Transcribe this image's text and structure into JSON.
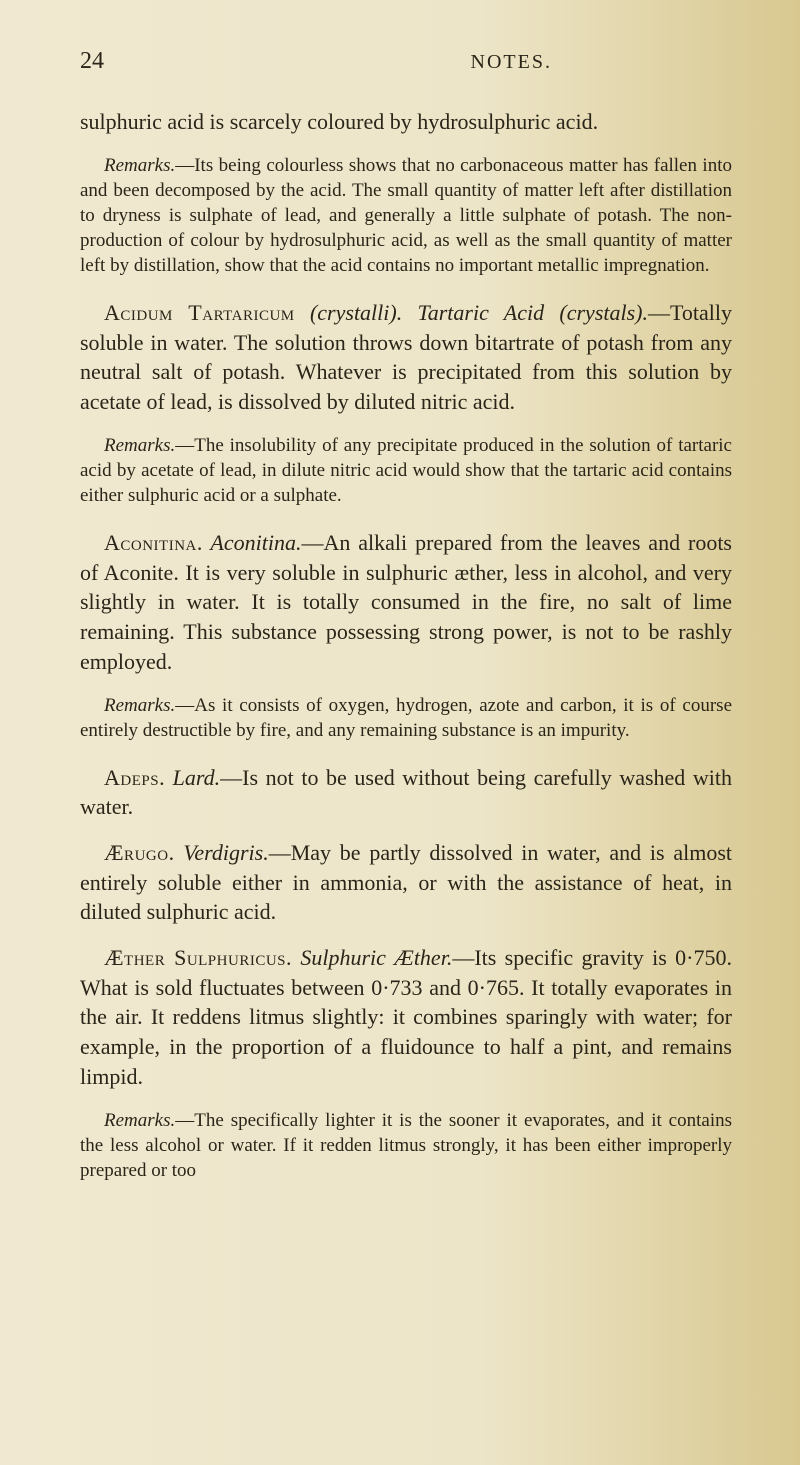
{
  "page_number": "24",
  "header_title": "NOTES.",
  "paragraphs": {
    "p1": "sulphuric acid is scarcely coloured by hydrosulphuric acid.",
    "p1_remarks_label": "Remarks.",
    "p1_remarks": "—Its being colourless shows that no carbonaceous matter has fallen into and been decomposed by the acid. The small quantity of matter left after distillation to dryness is sulphate of lead, and generally a little sulphate of potash. The non-production of colour by hydrosulphuric acid, as well as the small quantity of matter left by distillation, show that the acid contains no important metallic impregnation.",
    "p2_heading": "Acidum Tartaricum",
    "p2_paren": " (crystalli). ",
    "p2_title": "Tartaric Acid",
    "p2_paren2": " (crystals).",
    "p2_body": "—Totally soluble in water. The solution throws down bitartrate of potash from any neutral salt of potash. Whatever is precipitated from this solution by acetate of lead, is dissolved by diluted nitric acid.",
    "p2_remarks_label": "Remarks.",
    "p2_remarks": "—The insolubility of any precipitate produced in the solution of tartaric acid by acetate of lead, in dilute nitric acid would show that the tartaric acid contains either sulphuric acid or a sulphate.",
    "p3_heading": "Aconitina.",
    "p3_title": " Aconitina.",
    "p3_body": "—An alkali prepared from the leaves and roots of Aconite. It is very soluble in sulphuric æther, less in alcohol, and very slightly in water. It is totally consumed in the fire, no salt of lime remaining. This substance possessing strong power, is not to be rashly employed.",
    "p3_remarks_label": "Remarks.",
    "p3_remarks": "—As it consists of oxygen, hydrogen, azote and carbon, it is of course entirely destructible by fire, and any remaining substance is an impurity.",
    "p4_heading": "Adeps.",
    "p4_title": " Lard.",
    "p4_body": "—Is not to be used without being carefully washed with water.",
    "p5_heading": "Ærugo.",
    "p5_title": " Verdigris.",
    "p5_body": "—May be partly dissolved in water, and is almost entirely soluble either in ammonia, or with the assistance of heat, in diluted sulphuric acid.",
    "p6_heading": "Æther Sulphuricus.",
    "p6_title": " Sulphuric Æther.",
    "p6_body": "—Its specific gravity is 0·750. What is sold fluctuates between 0·733 and 0·765. It totally evaporates in the air. It reddens litmus slightly: it combines sparingly with water; for example, in the proportion of a fluidounce to half a pint, and remains limpid.",
    "p6_remarks_label": "Remarks.",
    "p6_remarks": "—The specifically lighter it is the sooner it evaporates, and it contains the less alcohol or water. If it redden litmus strongly, it has been either improperly prepared or too"
  },
  "colors": {
    "bg_left": "#f0e8d0",
    "bg_right": "#d8c890",
    "text": "#2a2518"
  },
  "typography": {
    "body_fontsize": 22,
    "remarks_fontsize": 19,
    "header_fontsize": 20,
    "pagenum_fontsize": 24,
    "font_family": "Times New Roman"
  }
}
